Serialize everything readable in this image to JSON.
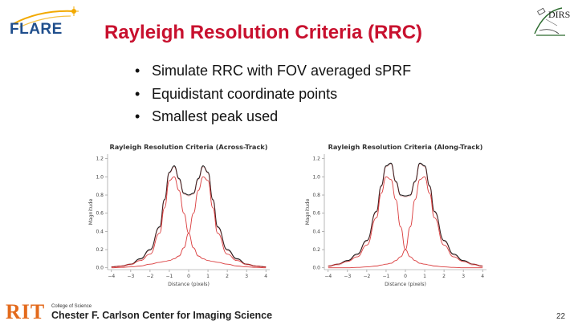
{
  "header": {
    "logo_text": "FLARE",
    "partner_logo_text": "DIRS",
    "title": "Rayleigh Resolution Criteria (RRC)"
  },
  "bullets": [
    "Simulate RRC with FOV averaged sPRF",
    "Equidistant coordinate points",
    "Smallest peak used"
  ],
  "colors": {
    "title": "#c8102e",
    "rit_orange": "#e36a1c",
    "flare_blue": "#1f4e8c",
    "sum_line": "#1a1a1a",
    "component_line": "#d62728"
  },
  "chart_data": [
    {
      "type": "line",
      "title": "Rayleigh Resolution Criteria (Across-Track)",
      "xlabel": "Distance (pixels)",
      "ylabel": "Magnitude",
      "xlim": [
        -4.2,
        4.2
      ],
      "ylim": [
        -0.02,
        1.25
      ],
      "xticks": [
        -4,
        -3,
        -2,
        -1,
        0,
        1,
        2,
        3,
        4
      ],
      "yticks": [
        0.0,
        0.2,
        0.4,
        0.6,
        0.8,
        1.0,
        1.2
      ],
      "grid": false,
      "x": [
        -4,
        -3.5,
        -3,
        -2.5,
        -2,
        -1.5,
        -1.25,
        -1,
        -0.75,
        -0.5,
        -0.25,
        0,
        0.25,
        0.5,
        0.75,
        1,
        1.25,
        1.5,
        2,
        2.5,
        3,
        3.5,
        4
      ],
      "series": [
        {
          "style": "sum",
          "values": [
            0.01,
            0.02,
            0.04,
            0.1,
            0.2,
            0.45,
            0.75,
            1.05,
            1.12,
            0.98,
            0.82,
            0.8,
            0.82,
            0.98,
            1.12,
            1.05,
            0.75,
            0.45,
            0.2,
            0.1,
            0.04,
            0.02,
            0.01
          ]
        },
        {
          "style": "component",
          "values": [
            0.01,
            0.02,
            0.04,
            0.08,
            0.15,
            0.38,
            0.66,
            0.96,
            1.0,
            0.85,
            0.6,
            0.38,
            0.22,
            0.13,
            0.1,
            0.08,
            0.07,
            0.06,
            0.04,
            0.02,
            0.01,
            0.005,
            0.0
          ]
        },
        {
          "style": "component",
          "values": [
            0.0,
            0.005,
            0.01,
            0.02,
            0.04,
            0.06,
            0.07,
            0.08,
            0.1,
            0.13,
            0.22,
            0.38,
            0.6,
            0.85,
            1.0,
            0.96,
            0.66,
            0.38,
            0.15,
            0.08,
            0.04,
            0.02,
            0.01
          ]
        }
      ]
    },
    {
      "type": "line",
      "title": "Rayleigh Resolution Criteria (Along-Track)",
      "xlabel": "Distance (pixels)",
      "ylabel": "Magnitude",
      "xlim": [
        -4.2,
        4.2
      ],
      "ylim": [
        -0.02,
        1.25
      ],
      "xticks": [
        -4,
        -3,
        -2,
        -1,
        0,
        1,
        2,
        3,
        4
      ],
      "yticks": [
        0.0,
        0.2,
        0.4,
        0.6,
        0.8,
        1.0,
        1.2
      ],
      "grid": false,
      "x": [
        -4,
        -3.5,
        -3,
        -2.5,
        -2,
        -1.5,
        -1.25,
        -1,
        -0.75,
        -0.5,
        -0.25,
        0,
        0.25,
        0.5,
        0.75,
        1,
        1.25,
        1.5,
        2,
        2.5,
        3,
        3.5,
        4
      ],
      "series": [
        {
          "style": "sum",
          "values": [
            0.02,
            0.04,
            0.08,
            0.15,
            0.3,
            0.62,
            0.9,
            1.12,
            1.15,
            0.95,
            0.8,
            0.79,
            0.8,
            0.95,
            1.15,
            1.12,
            0.9,
            0.62,
            0.3,
            0.15,
            0.08,
            0.04,
            0.02
          ]
        },
        {
          "style": "component",
          "values": [
            0.02,
            0.04,
            0.07,
            0.12,
            0.25,
            0.55,
            0.82,
            1.0,
            0.97,
            0.75,
            0.45,
            0.2,
            0.12,
            0.08,
            0.05,
            0.04,
            0.03,
            0.02,
            0.01,
            0.005,
            0.0,
            0.0,
            0.0
          ]
        },
        {
          "style": "component",
          "values": [
            0.0,
            0.0,
            0.0,
            0.005,
            0.01,
            0.02,
            0.03,
            0.04,
            0.05,
            0.08,
            0.12,
            0.2,
            0.45,
            0.75,
            0.97,
            1.0,
            0.82,
            0.55,
            0.25,
            0.12,
            0.07,
            0.04,
            0.02
          ]
        }
      ]
    }
  ],
  "footer": {
    "institution_logo_text": "RIT",
    "college": "College of Science",
    "center": "Chester F. Carlson Center for Imaging Science",
    "page_number": "22"
  }
}
